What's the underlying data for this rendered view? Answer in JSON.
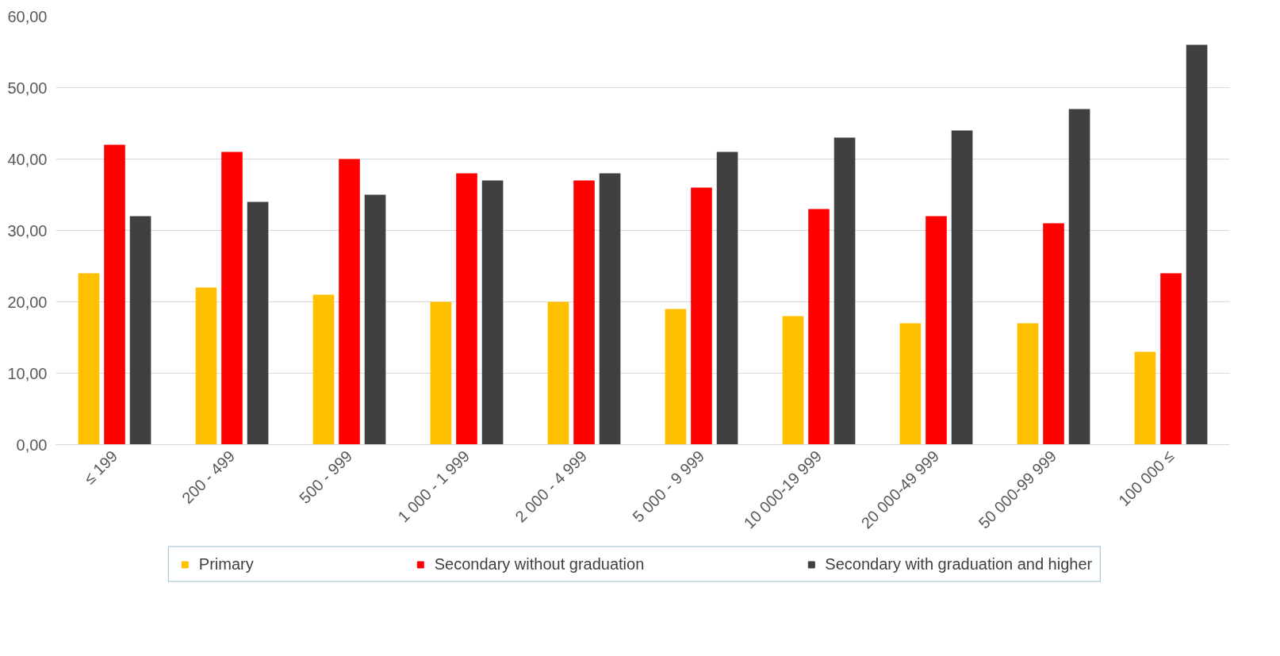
{
  "chart_data": {
    "type": "bar",
    "categories": [
      "≤ 199",
      "200 - 499",
      "500 - 999",
      "1 000 - 1 999",
      "2 000 - 4 999",
      "5 000 - 9 999",
      "10 000-19 999",
      "20 000-49 999",
      "50 000-99 999",
      "100 000 ≤"
    ],
    "series": [
      {
        "name": "Primary",
        "color": "#ffc000",
        "values": [
          24,
          22,
          21,
          20,
          20,
          19,
          18,
          17,
          17,
          13
        ]
      },
      {
        "name": "Secondary without graduation",
        "color": "#ff0000",
        "values": [
          42,
          41,
          40,
          38,
          37,
          36,
          33,
          32,
          31,
          24
        ]
      },
      {
        "name": "Secondary with graduation and higher",
        "color": "#404040",
        "values": [
          32,
          34,
          35,
          37,
          38,
          41,
          43,
          44,
          47,
          56
        ]
      }
    ],
    "ylim": [
      0,
      60
    ],
    "yticks": [
      {
        "value": 0,
        "label": "0,00"
      },
      {
        "value": 10,
        "label": "10,00"
      },
      {
        "value": 20,
        "label": "20,00"
      },
      {
        "value": 30,
        "label": "30,00"
      },
      {
        "value": 40,
        "label": "40,00"
      },
      {
        "value": 50,
        "label": "50,00"
      },
      {
        "value": 60,
        "label": "60,00"
      }
    ],
    "grid": "y",
    "legend": "bottom"
  }
}
